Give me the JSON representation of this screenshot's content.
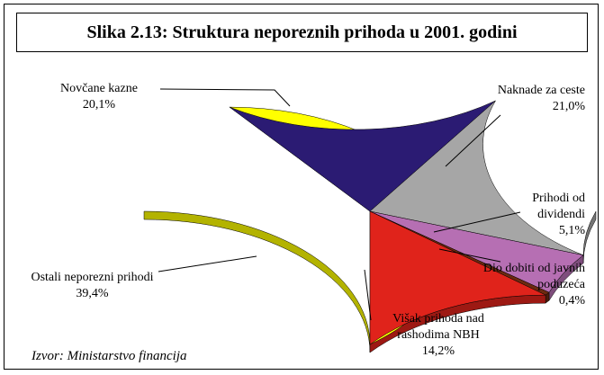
{
  "chart_data": {
    "type": "pie",
    "title": "Slika 2.13: Struktura neporeznih prihoda u 2001. godini",
    "source": "Izvor: Ministarstvo financija",
    "categories": [
      "Ostali neporezni prihodi",
      "Novčane kazne",
      "Naknade za ceste",
      "Prihodi od dividendi",
      "Dio dobiti od javnih poduzeća",
      "Višak prihoda nad rashodima NBH"
    ],
    "values": [
      39.4,
      20.1,
      21.0,
      5.1,
      0.4,
      14.2
    ],
    "value_labels": [
      "39,4%",
      "20,1%",
      "21,0%",
      "5,1%",
      "0,4%",
      "14,2%"
    ],
    "colors": [
      "#ffff00",
      "#2b1b73",
      "#a6a6a6",
      "#b66fb3",
      "#6b2a10",
      "#e0231b"
    ]
  }
}
